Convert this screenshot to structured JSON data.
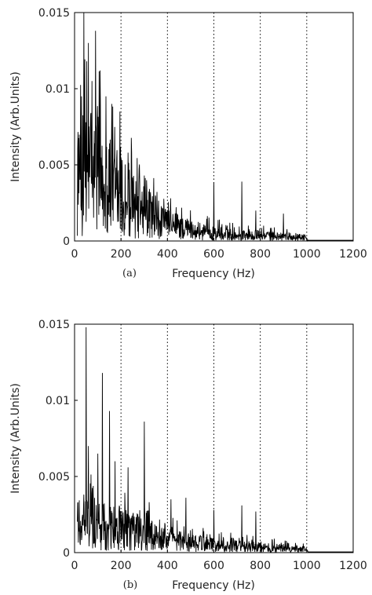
{
  "figure": {
    "background": "#ffffff",
    "line_color": "#000000",
    "guide_color": "#000000"
  },
  "chart_data": [
    {
      "type": "line",
      "panel_label": "(a)",
      "xlabel": "Frequency (Hz)",
      "ylabel": "Intensity (Arb.Units)",
      "xlim": [
        0,
        1200
      ],
      "ylim": [
        0,
        0.015
      ],
      "xticks": [
        0,
        200,
        400,
        600,
        800,
        1000,
        1200
      ],
      "xtick_labels": [
        "0",
        "200",
        "400",
        "600",
        "800",
        "1000",
        "1200"
      ],
      "yticks": [
        0,
        0.005,
        0.01,
        0.015
      ],
      "ytick_labels": [
        "0",
        "0.005",
        "0.01",
        "0.015"
      ],
      "dotted_guides_x": [
        200,
        400,
        600,
        800,
        1000
      ],
      "grid": false,
      "legend": "none",
      "series": [
        {
          "peaks": [
            {
              "x": 30,
              "y": 0.0095
            },
            {
              "x": 40,
              "y": 0.015
            },
            {
              "x": 52,
              "y": 0.0118
            },
            {
              "x": 60,
              "y": 0.013
            },
            {
              "x": 75,
              "y": 0.0105
            },
            {
              "x": 90,
              "y": 0.0138
            },
            {
              "x": 110,
              "y": 0.0112
            },
            {
              "x": 135,
              "y": 0.0095
            },
            {
              "x": 160,
              "y": 0.009
            },
            {
              "x": 195,
              "y": 0.0085
            },
            {
              "x": 230,
              "y": 0.0058
            },
            {
              "x": 300,
              "y": 0.0043
            },
            {
              "x": 600,
              "y": 0.0038
            },
            {
              "x": 720,
              "y": 0.0039
            },
            {
              "x": 780,
              "y": 0.002
            },
            {
              "x": 900,
              "y": 0.0018
            }
          ],
          "envelope": [
            {
              "x": 20,
              "y": 0.0055
            },
            {
              "x": 50,
              "y": 0.0065
            },
            {
              "x": 100,
              "y": 0.006
            },
            {
              "x": 150,
              "y": 0.005
            },
            {
              "x": 200,
              "y": 0.0042
            },
            {
              "x": 300,
              "y": 0.0026
            },
            {
              "x": 400,
              "y": 0.0015
            },
            {
              "x": 500,
              "y": 0.001
            },
            {
              "x": 600,
              "y": 0.0007
            },
            {
              "x": 800,
              "y": 0.0005
            },
            {
              "x": 1000,
              "y": 0.0003
            },
            {
              "x": 1005,
              "y": 5e-05
            },
            {
              "x": 1200,
              "y": 5e-05
            }
          ]
        }
      ]
    },
    {
      "type": "line",
      "panel_label": "(b)",
      "xlabel": "Frequency (Hz)",
      "ylabel": "Intensity (Arb.Units)",
      "xlim": [
        0,
        1200
      ],
      "ylim": [
        0,
        0.015
      ],
      "xticks": [
        0,
        200,
        400,
        600,
        800,
        1000,
        1200
      ],
      "xtick_labels": [
        "0",
        "200",
        "400",
        "600",
        "800",
        "1000",
        "1200"
      ],
      "yticks": [
        0,
        0.005,
        0.01,
        0.015
      ],
      "ytick_labels": [
        "0",
        "0.005",
        "0.01",
        "0.015"
      ],
      "dotted_guides_x": [
        200,
        400,
        600,
        800,
        1000
      ],
      "grid": false,
      "legend": "none",
      "series": [
        {
          "peaks": [
            {
              "x": 50,
              "y": 0.0148
            },
            {
              "x": 60,
              "y": 0.007
            },
            {
              "x": 100,
              "y": 0.0065
            },
            {
              "x": 120,
              "y": 0.0118
            },
            {
              "x": 150,
              "y": 0.0093
            },
            {
              "x": 175,
              "y": 0.006
            },
            {
              "x": 230,
              "y": 0.0056
            },
            {
              "x": 300,
              "y": 0.0086
            },
            {
              "x": 415,
              "y": 0.0035
            },
            {
              "x": 480,
              "y": 0.0036
            },
            {
              "x": 600,
              "y": 0.0028
            },
            {
              "x": 720,
              "y": 0.0031
            },
            {
              "x": 780,
              "y": 0.0027
            }
          ],
          "envelope": [
            {
              "x": 20,
              "y": 0.0028
            },
            {
              "x": 100,
              "y": 0.0028
            },
            {
              "x": 200,
              "y": 0.0022
            },
            {
              "x": 300,
              "y": 0.0017
            },
            {
              "x": 400,
              "y": 0.0012
            },
            {
              "x": 500,
              "y": 0.0009
            },
            {
              "x": 600,
              "y": 0.0007
            },
            {
              "x": 800,
              "y": 0.0005
            },
            {
              "x": 1000,
              "y": 0.0003
            },
            {
              "x": 1005,
              "y": 5e-05
            },
            {
              "x": 1200,
              "y": 5e-05
            }
          ]
        }
      ]
    }
  ]
}
